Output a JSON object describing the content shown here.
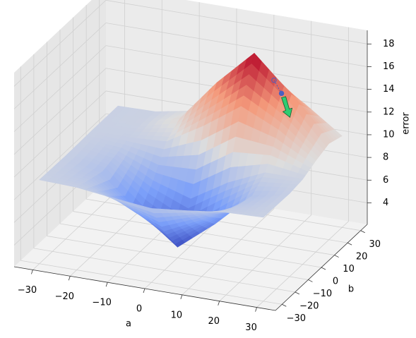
{
  "chart_data": {
    "type": "surface3d",
    "xlabel": "a",
    "ylabel": "b",
    "zlabel": "error",
    "xlim": [
      -35,
      35
    ],
    "ylim": [
      -35,
      35
    ],
    "zlim": [
      2.1,
      19.2
    ],
    "xticks": [
      {
        "value": -30,
        "label": "−30"
      },
      {
        "value": -20,
        "label": "−20"
      },
      {
        "value": -10,
        "label": "−10"
      },
      0,
      10,
      20,
      30
    ],
    "yticks": [
      {
        "value": -30,
        "label": "−30"
      },
      {
        "value": -20,
        "label": "−20"
      },
      {
        "value": -10,
        "label": "−10"
      },
      0,
      10,
      20,
      30
    ],
    "zticks": [
      4,
      6,
      8,
      10,
      12,
      14,
      16,
      18
    ],
    "grid": true,
    "colormap": "coolwarm",
    "surface": {
      "a": [
        -30,
        -20,
        -10,
        0,
        10,
        20,
        30
      ],
      "b": [
        -30,
        -20,
        -10,
        0,
        10,
        20,
        30
      ],
      "error": [
        [
          9.49,
          9.38,
          8.97,
          8.62,
          8.97,
          9.38,
          9.49
        ],
        [
          9.46,
          8.97,
          7.11,
          5.55,
          7.11,
          8.97,
          9.46
        ],
        [
          9.43,
          8.62,
          5.55,
          3.05,
          5.64,
          8.67,
          9.43
        ],
        [
          9.46,
          8.98,
          7.25,
          6.21,
          8.19,
          9.63,
          9.6
        ],
        [
          9.49,
          9.43,
          9.63,
          11.56,
          13.83,
          12.32,
          10.15
        ],
        [
          9.5,
          9.58,
          10.54,
          14.29,
          17.43,
          14.32,
          10.58
        ],
        [
          9.5,
          9.55,
          10.16,
          12.44,
          14.36,
          12.44,
          10.16
        ]
      ]
    },
    "path": {
      "a": [
        16,
        18
      ],
      "b": [
        18,
        18
      ],
      "error": [
        15.6,
        14.55
      ],
      "color": "#4a5fc1"
    },
    "arrow_color": "#2ecc71"
  }
}
